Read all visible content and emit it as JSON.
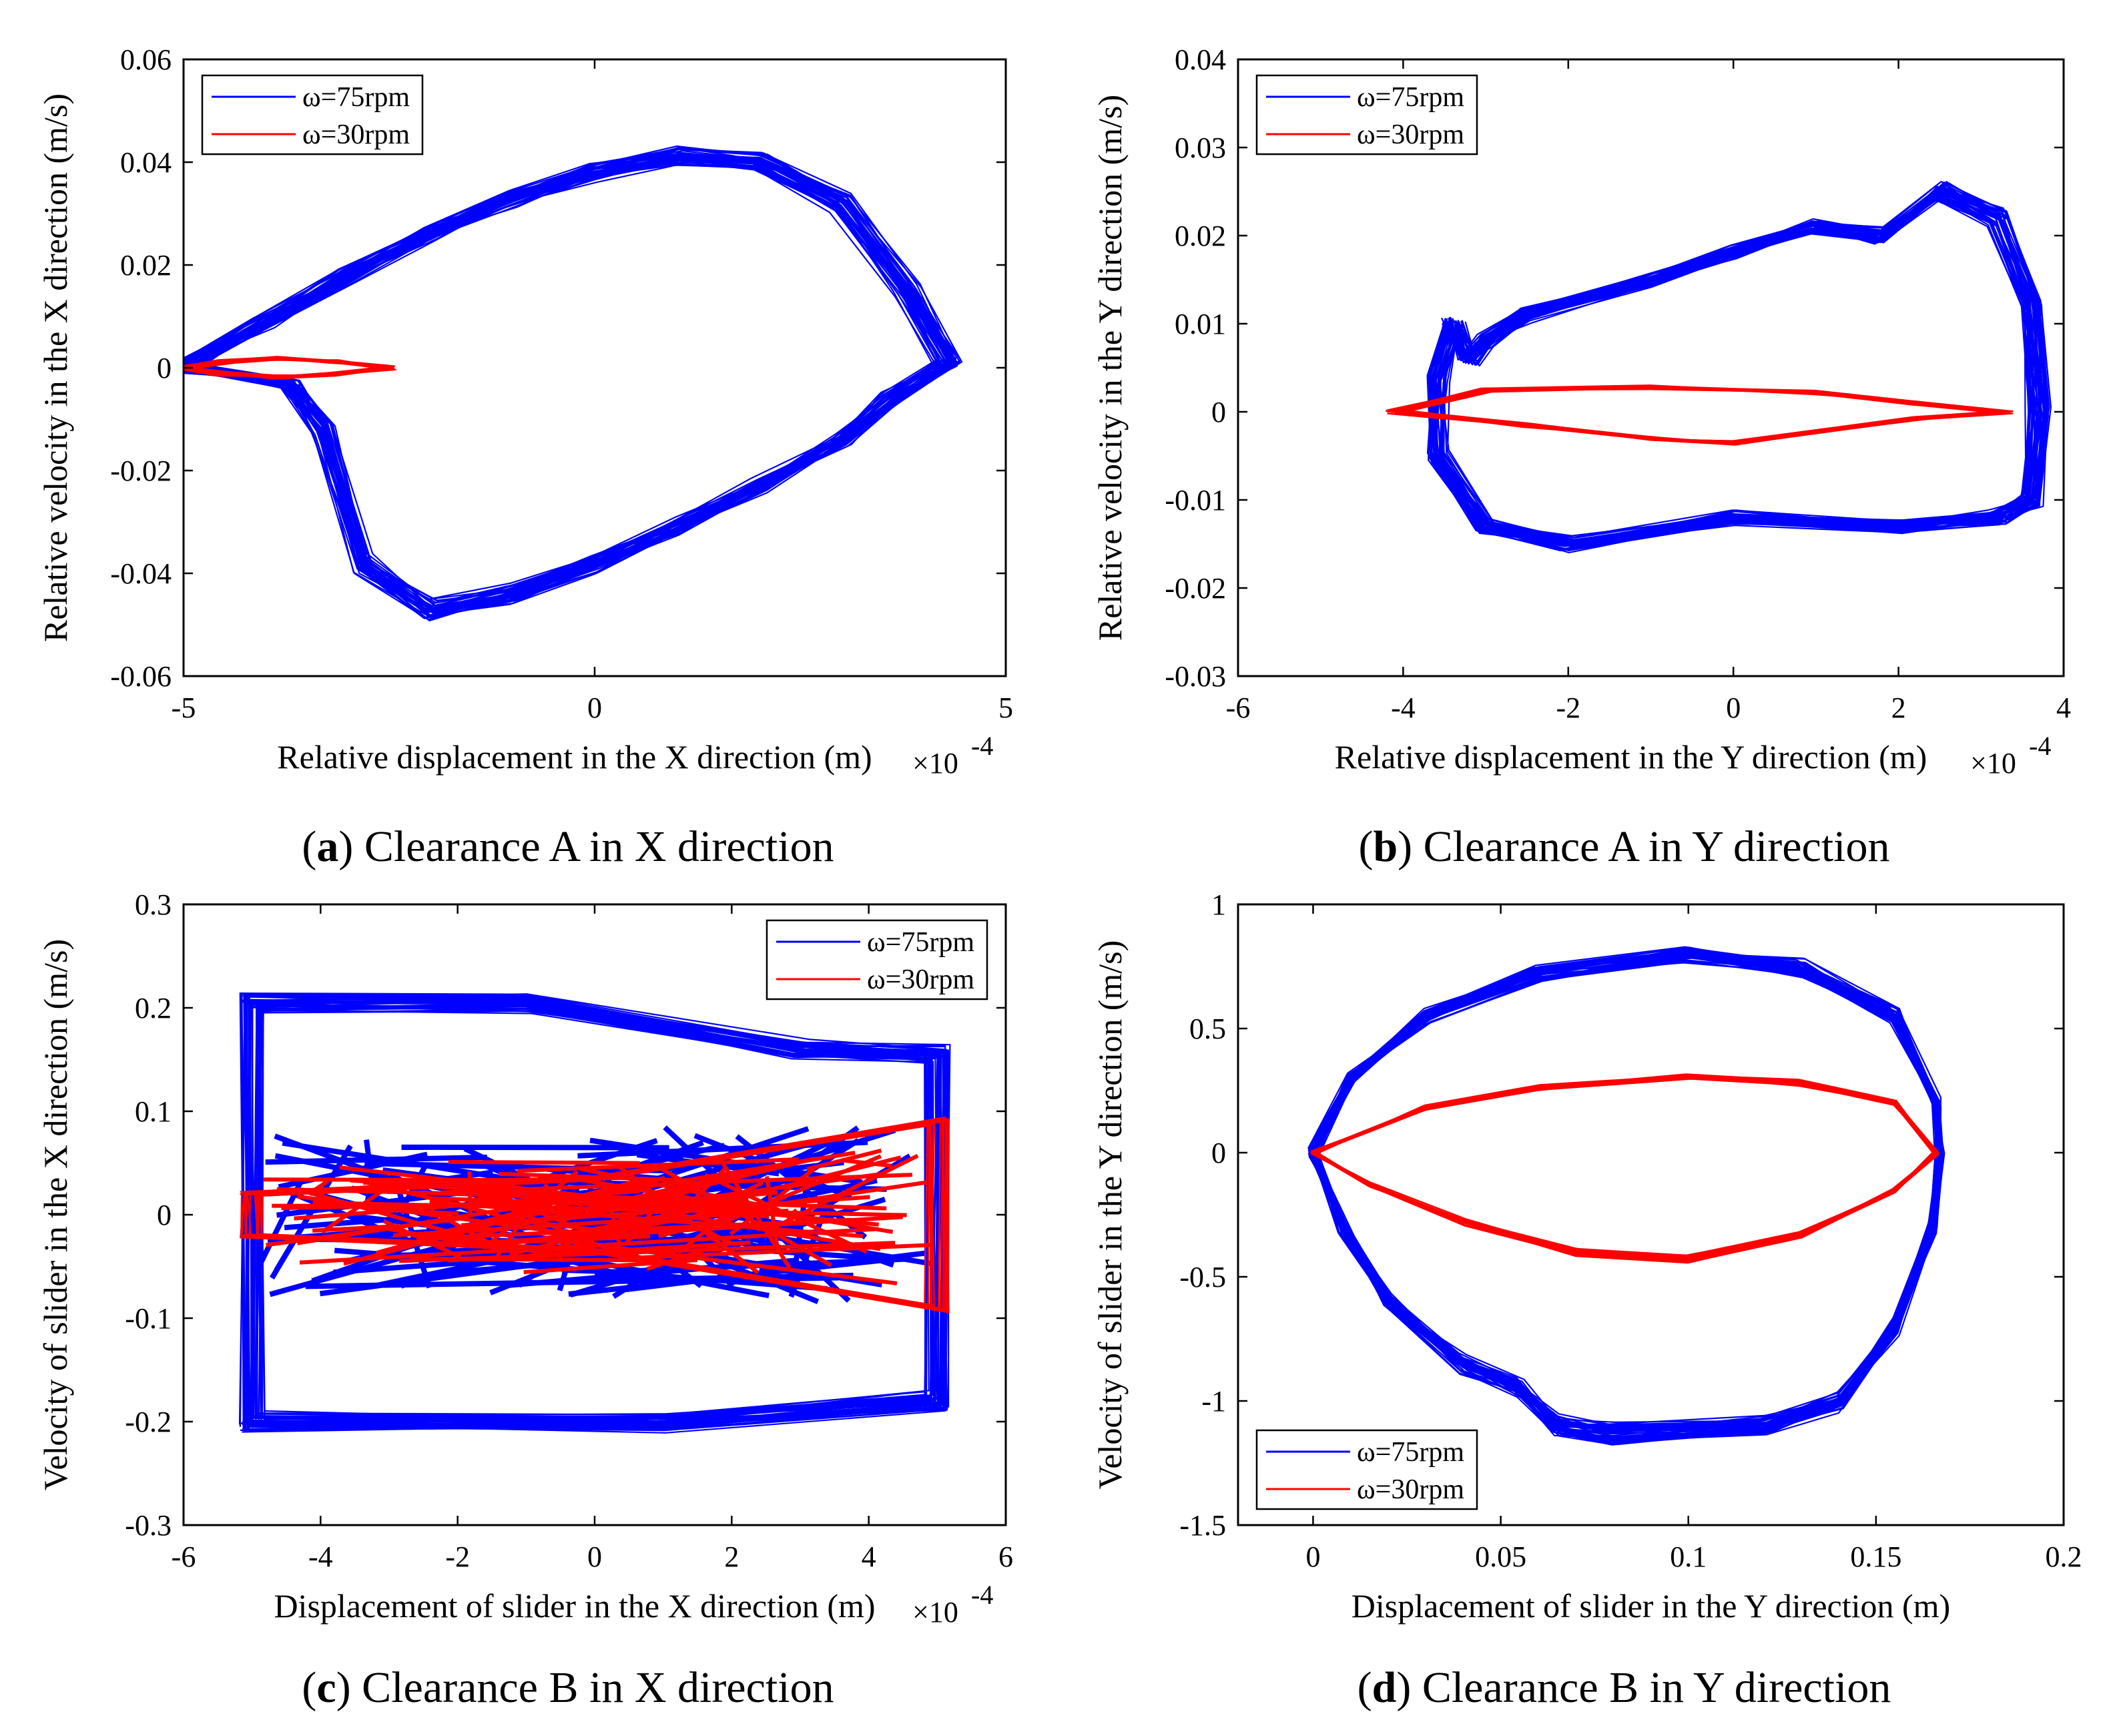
{
  "colors": {
    "series_75": "#0000ff",
    "series_30": "#ff0000",
    "axis": "#000000"
  },
  "chart_data": [
    {
      "id": "a",
      "type": "line",
      "caption_letter": "a",
      "caption_rest": ") Clearance A in X direction",
      "xlabel": "Relative displacement in the X direction (m)",
      "ylabel": "Relative velocity in the X direction (m/s)",
      "x_multiplier": "×10",
      "x_exponent": "-4",
      "xlim": [
        -5,
        5
      ],
      "ylim": [
        -0.06,
        0.06
      ],
      "xticks": [
        -5,
        0,
        5
      ],
      "xtick_labels": [
        "-5",
        "0",
        "5"
      ],
      "yticks": [
        -0.06,
        -0.04,
        -0.02,
        0,
        0.02,
        0.04,
        0.06
      ],
      "ytick_labels": [
        "-0.06",
        "-0.04",
        "-0.02",
        "0",
        "0.02",
        "0.04",
        "0.06"
      ],
      "legend_position": "top-left",
      "series": [
        {
          "name": "ω=75rpm",
          "color": "#0000ff",
          "points": [
            [
              -5,
              0
            ],
            [
              -4,
              0.009
            ],
            [
              -3,
              0.018
            ],
            [
              -2,
              0.026
            ],
            [
              -1,
              0.033
            ],
            [
              0,
              0.038
            ],
            [
              1,
              0.041
            ],
            [
              2,
              0.04
            ],
            [
              3,
              0.032
            ],
            [
              3.8,
              0.015
            ],
            [
              4.3,
              0.001
            ],
            [
              3.6,
              -0.006
            ],
            [
              3,
              -0.014
            ],
            [
              2,
              -0.023
            ],
            [
              1,
              -0.031
            ],
            [
              0,
              -0.038
            ],
            [
              -1,
              -0.044
            ],
            [
              -2,
              -0.047
            ],
            [
              -2.8,
              -0.038
            ],
            [
              -3.3,
              -0.012
            ],
            [
              -3.7,
              -0.003
            ],
            [
              -5,
              0
            ]
          ]
        },
        {
          "name": "ω=30rpm",
          "color": "#ff0000",
          "points": [
            [
              -5,
              0
            ],
            [
              -4.5,
              0.0012
            ],
            [
              -3.8,
              0.0018
            ],
            [
              -3.2,
              0.0013
            ],
            [
              -2.5,
              0
            ],
            [
              -3.2,
              -0.0013
            ],
            [
              -3.8,
              -0.0018
            ],
            [
              -4.5,
              -0.0012
            ],
            [
              -5,
              0
            ]
          ]
        }
      ]
    },
    {
      "id": "b",
      "type": "line",
      "caption_letter": "b",
      "caption_rest": ") Clearance A in Y direction",
      "xlabel": "Relative displacement in the Y direction (m)",
      "ylabel": "Relative velocity in the Y direction (m/s)",
      "x_multiplier": "×10",
      "x_exponent": "-4",
      "xlim": [
        -6,
        4
      ],
      "ylim": [
        -0.03,
        0.04
      ],
      "xticks": [
        -6,
        -4,
        -2,
        0,
        2,
        4
      ],
      "xtick_labels": [
        "-6",
        "-4",
        "-2",
        "0",
        "2",
        "4"
      ],
      "yticks": [
        -0.03,
        -0.02,
        -0.01,
        0,
        0.01,
        0.02,
        0.03,
        0.04
      ],
      "ytick_labels": [
        "-0.03",
        "-0.02",
        "-0.01",
        "0",
        "0.01",
        "0.02",
        "0.03",
        "0.04"
      ],
      "legend_position": "top-left",
      "series": [
        {
          "name": "ω=75rpm",
          "color": "#0000ff",
          "points": [
            [
              -3.4,
              0.01
            ],
            [
              -3.2,
              0.006
            ],
            [
              -3.0,
              0.008
            ],
            [
              -2.5,
              0.011
            ],
            [
              -1,
              0.015
            ],
            [
              0,
              0.018
            ],
            [
              1,
              0.021
            ],
            [
              1.8,
              0.02
            ],
            [
              2.5,
              0.025
            ],
            [
              3.2,
              0.022
            ],
            [
              3.6,
              0.012
            ],
            [
              3.7,
              0
            ],
            [
              3.6,
              -0.01
            ],
            [
              3.2,
              -0.012
            ],
            [
              2,
              -0.013
            ],
            [
              0,
              -0.012
            ],
            [
              -2,
              -0.015
            ],
            [
              -3,
              -0.013
            ],
            [
              -3.6,
              -0.005
            ],
            [
              -3.6,
              0.004
            ],
            [
              -3.4,
              0.01
            ]
          ]
        },
        {
          "name": "ω=30rpm",
          "color": "#ff0000",
          "points": [
            [
              -4.1,
              0
            ],
            [
              -3,
              0.0025
            ],
            [
              -1,
              0.0028
            ],
            [
              1,
              0.0022
            ],
            [
              2.2,
              0.001
            ],
            [
              3.3,
              0
            ],
            [
              2.2,
              -0.0008
            ],
            [
              0,
              -0.0035
            ],
            [
              -1,
              -0.003
            ],
            [
              -2.5,
              -0.0015
            ],
            [
              -4.1,
              0
            ]
          ]
        }
      ]
    },
    {
      "id": "c",
      "type": "line",
      "caption_letter": "c",
      "caption_rest": ") Clearance B in X direction",
      "xlabel": "Displacement of slider in the X direction (m)",
      "ylabel": "Velocity of slider in the X direction (m/s)",
      "x_multiplier": "×10",
      "x_exponent": "-4",
      "xlim": [
        -6,
        6
      ],
      "ylim": [
        -0.3,
        0.3
      ],
      "xticks": [
        -6,
        -4,
        -2,
        0,
        2,
        4,
        6
      ],
      "xtick_labels": [
        "-6",
        "-4",
        "-2",
        "0",
        "2",
        "4",
        "6"
      ],
      "yticks": [
        -0.3,
        -0.2,
        -0.1,
        0,
        0.1,
        0.2,
        0.3
      ],
      "ytick_labels": [
        "-0.3",
        "-0.2",
        "-0.1",
        "0",
        "0.1",
        "0.2",
        "0.3"
      ],
      "legend_position": "top-right",
      "series": [
        {
          "name": "ω=75rpm",
          "color": "#0000ff",
          "points": [
            [
              -5,
              -0.2
            ],
            [
              -5,
              0.205
            ],
            [
              -1,
              0.205
            ],
            [
              3,
              0.16
            ],
            [
              5,
              0.155
            ],
            [
              5,
              -0.18
            ],
            [
              1,
              -0.2
            ],
            [
              -5,
              -0.2
            ]
          ]
        },
        {
          "name": "ω=30rpm",
          "color": "#ff0000",
          "points": [
            [
              -5,
              0.02
            ],
            [
              0,
              0.035
            ],
            [
              5,
              0.09
            ],
            [
              5,
              -0.09
            ],
            [
              0,
              -0.035
            ],
            [
              -5,
              -0.02
            ],
            [
              -5,
              0.02
            ]
          ]
        }
      ]
    },
    {
      "id": "d",
      "type": "line",
      "caption_letter": "d",
      "caption_rest": ") Clearance B in Y direction",
      "xlabel": "Displacement of slider in the Y direction (m)",
      "ylabel": "Velocity of slider in the Y direction (m/s)",
      "x_multiplier": "",
      "x_exponent": "",
      "xlim": [
        -0.02,
        0.2
      ],
      "ylim": [
        -1.5,
        1
      ],
      "xticks": [
        0,
        0.05,
        0.1,
        0.15,
        0.2
      ],
      "xtick_labels": [
        "0",
        "0.05",
        "0.1",
        "0.15",
        "0.2"
      ],
      "yticks": [
        -1.5,
        -1,
        -0.5,
        0,
        0.5,
        1
      ],
      "ytick_labels": [
        "-1.5",
        "-1",
        "-0.5",
        "0",
        "0.5",
        "1"
      ],
      "legend_position": "bottom-left",
      "series": [
        {
          "name": "ω=75rpm",
          "color": "#0000ff",
          "points": [
            [
              0,
              0
            ],
            [
              0.01,
              0.3
            ],
            [
              0.03,
              0.55
            ],
            [
              0.06,
              0.72
            ],
            [
              0.1,
              0.8
            ],
            [
              0.13,
              0.74
            ],
            [
              0.155,
              0.55
            ],
            [
              0.166,
              0.2
            ],
            [
              0.167,
              0
            ],
            [
              0.165,
              -0.3
            ],
            [
              0.155,
              -0.7
            ],
            [
              0.14,
              -1.0
            ],
            [
              0.12,
              -1.1
            ],
            [
              0.08,
              -1.13
            ],
            [
              0.065,
              -1.1
            ],
            [
              0.055,
              -0.95
            ],
            [
              0.04,
              -0.85
            ],
            [
              0.02,
              -0.6
            ],
            [
              0.008,
              -0.3
            ],
            [
              0,
              0
            ]
          ]
        },
        {
          "name": "ω=30rpm",
          "color": "#ff0000",
          "points": [
            [
              0,
              0
            ],
            [
              0.03,
              0.18
            ],
            [
              0.06,
              0.26
            ],
            [
              0.1,
              0.31
            ],
            [
              0.13,
              0.28
            ],
            [
              0.155,
              0.2
            ],
            [
              0.166,
              0
            ],
            [
              0.155,
              -0.15
            ],
            [
              0.13,
              -0.33
            ],
            [
              0.1,
              -0.43
            ],
            [
              0.07,
              -0.4
            ],
            [
              0.04,
              -0.28
            ],
            [
              0.015,
              -0.13
            ],
            [
              0,
              0
            ]
          ]
        }
      ]
    }
  ]
}
